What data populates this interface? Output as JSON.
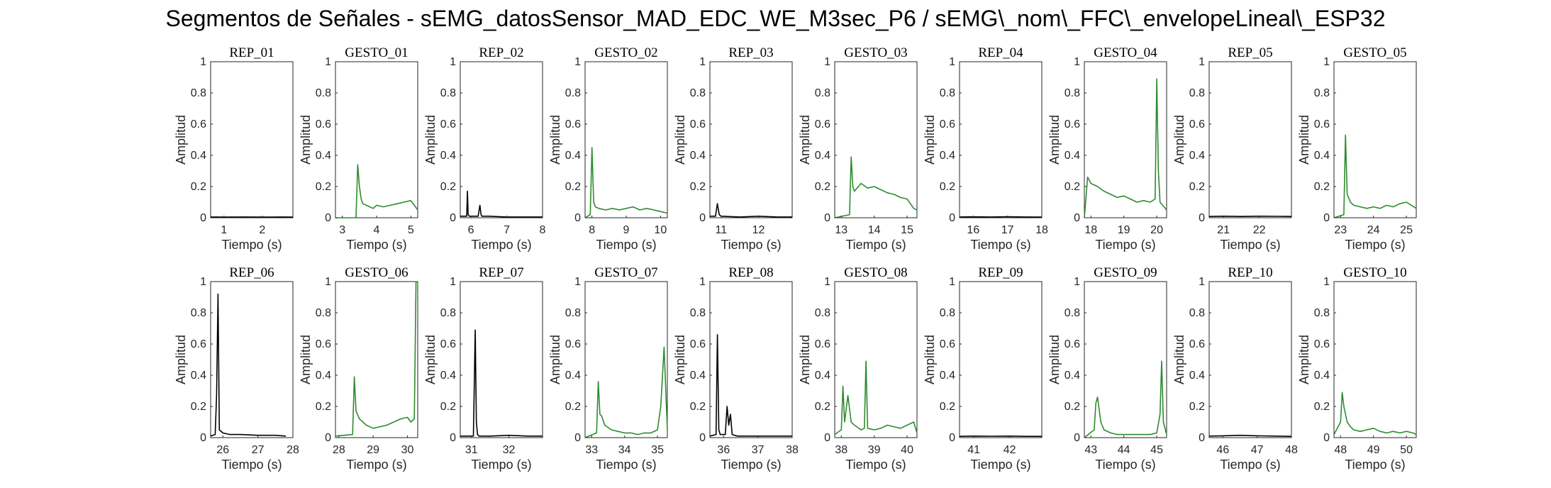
{
  "title": "Segmentos de Señales - sEMG_datosSensor_MAD_EDC_WE_M3sec_P6 / sEMG\\_nom\\_FFC\\_envelopeLineal\\_ESP32",
  "colors": {
    "rep": "#000000",
    "gesto": "#2e8b2e",
    "axis": "#262626"
  },
  "chart_data": [
    {
      "type": "line",
      "title": "REP_01",
      "xlabel": "Tiempo (s)",
      "ylabel": "Amplitud",
      "xlim": [
        0.65,
        2.8
      ],
      "ylim": [
        0,
        1
      ],
      "xticks": [
        1,
        2
      ],
      "yticks": [
        0,
        0.2,
        0.4,
        0.6,
        0.8,
        1
      ],
      "color": "rep",
      "x": [
        0.65,
        1.0,
        1.5,
        2.0,
        2.5,
        2.8
      ],
      "y": [
        0.005,
        0.004,
        0.005,
        0.004,
        0.005,
        0.004
      ]
    },
    {
      "type": "line",
      "title": "GESTO_01",
      "xlabel": "Tiempo (s)",
      "ylabel": "Amplitud",
      "xlim": [
        2.8,
        5.2
      ],
      "ylim": [
        0,
        1
      ],
      "xticks": [
        3,
        4,
        5
      ],
      "yticks": [
        0,
        0.2,
        0.4,
        0.6,
        0.8,
        1
      ],
      "color": "gesto",
      "x": [
        2.8,
        3.4,
        3.45,
        3.5,
        3.55,
        3.6,
        3.7,
        3.8,
        3.9,
        4.0,
        4.2,
        4.4,
        4.6,
        4.8,
        5.0,
        5.1,
        5.2
      ],
      "y": [
        0.0,
        0.0,
        0.34,
        0.2,
        0.12,
        0.09,
        0.08,
        0.07,
        0.06,
        0.08,
        0.07,
        0.08,
        0.09,
        0.1,
        0.11,
        0.08,
        0.05
      ]
    },
    {
      "type": "line",
      "title": "REP_02",
      "xlabel": "Tiempo (s)",
      "ylabel": "Amplitud",
      "xlim": [
        5.7,
        8.0
      ],
      "ylim": [
        0,
        1
      ],
      "xticks": [
        6,
        7,
        8
      ],
      "yticks": [
        0,
        0.2,
        0.4,
        0.6,
        0.8,
        1
      ],
      "color": "rep",
      "x": [
        5.7,
        5.88,
        5.9,
        5.92,
        5.95,
        6.2,
        6.25,
        6.28,
        6.3,
        6.5,
        7.0,
        7.5,
        8.0
      ],
      "y": [
        0.01,
        0.01,
        0.17,
        0.02,
        0.01,
        0.01,
        0.08,
        0.02,
        0.01,
        0.01,
        0.005,
        0.005,
        0.005
      ]
    },
    {
      "type": "line",
      "title": "GESTO_02",
      "xlabel": "Tiempo (s)",
      "ylabel": "Amplitud",
      "xlim": [
        7.8,
        10.2
      ],
      "ylim": [
        0,
        1
      ],
      "xticks": [
        8,
        9,
        10
      ],
      "yticks": [
        0,
        0.2,
        0.4,
        0.6,
        0.8,
        1
      ],
      "color": "gesto",
      "x": [
        7.8,
        7.95,
        8.0,
        8.05,
        8.1,
        8.2,
        8.4,
        8.6,
        8.8,
        9.0,
        9.2,
        9.4,
        9.6,
        9.8,
        10.0,
        10.2
      ],
      "y": [
        0.0,
        0.02,
        0.45,
        0.1,
        0.07,
        0.06,
        0.05,
        0.06,
        0.05,
        0.06,
        0.07,
        0.05,
        0.06,
        0.05,
        0.04,
        0.03
      ]
    },
    {
      "type": "line",
      "title": "REP_03",
      "xlabel": "Tiempo (s)",
      "ylabel": "Amplitud",
      "xlim": [
        10.7,
        12.9
      ],
      "ylim": [
        0,
        1
      ],
      "xticks": [
        11,
        12
      ],
      "yticks": [
        0,
        0.2,
        0.4,
        0.6,
        0.8,
        1
      ],
      "color": "rep",
      "x": [
        10.7,
        10.85,
        10.9,
        10.95,
        11.0,
        11.5,
        12.0,
        12.5,
        12.9
      ],
      "y": [
        0.01,
        0.01,
        0.09,
        0.02,
        0.01,
        0.005,
        0.01,
        0.005,
        0.005
      ]
    },
    {
      "type": "line",
      "title": "GESTO_03",
      "xlabel": "Tiempo (s)",
      "ylabel": "Amplitud",
      "xlim": [
        12.8,
        15.3
      ],
      "ylim": [
        0,
        1
      ],
      "xticks": [
        13,
        14,
        15
      ],
      "yticks": [
        0,
        0.2,
        0.4,
        0.6,
        0.8,
        1
      ],
      "color": "gesto",
      "x": [
        12.8,
        13.25,
        13.3,
        13.35,
        13.4,
        13.6,
        13.8,
        14.0,
        14.2,
        14.4,
        14.6,
        14.8,
        15.0,
        15.2,
        15.3
      ],
      "y": [
        0.0,
        0.02,
        0.39,
        0.2,
        0.17,
        0.22,
        0.19,
        0.2,
        0.18,
        0.16,
        0.15,
        0.13,
        0.12,
        0.06,
        0.05
      ]
    },
    {
      "type": "line",
      "title": "REP_04",
      "xlabel": "Tiempo (s)",
      "ylabel": "Amplitud",
      "xlim": [
        15.6,
        18.0
      ],
      "ylim": [
        0,
        1
      ],
      "xticks": [
        16,
        17,
        18
      ],
      "yticks": [
        0,
        0.2,
        0.4,
        0.6,
        0.8,
        1
      ],
      "color": "rep",
      "x": [
        15.6,
        16.0,
        16.5,
        17.0,
        17.5,
        18.0
      ],
      "y": [
        0.005,
        0.006,
        0.005,
        0.007,
        0.005,
        0.004
      ]
    },
    {
      "type": "line",
      "title": "GESTO_04",
      "xlabel": "Tiempo (s)",
      "ylabel": "Amplitud",
      "xlim": [
        17.8,
        20.3
      ],
      "ylim": [
        0,
        1
      ],
      "xticks": [
        18,
        19,
        20
      ],
      "yticks": [
        0,
        0.2,
        0.4,
        0.6,
        0.8,
        1
      ],
      "color": "gesto",
      "x": [
        17.8,
        17.9,
        18.0,
        18.2,
        18.4,
        18.6,
        18.8,
        19.0,
        19.2,
        19.4,
        19.6,
        19.8,
        19.95,
        20.0,
        20.05,
        20.1,
        20.3
      ],
      "y": [
        0.0,
        0.26,
        0.22,
        0.2,
        0.17,
        0.15,
        0.13,
        0.14,
        0.12,
        0.1,
        0.11,
        0.1,
        0.12,
        0.89,
        0.3,
        0.1,
        0.05
      ]
    },
    {
      "type": "line",
      "title": "REP_05",
      "xlabel": "Tiempo (s)",
      "ylabel": "Amplitud",
      "xlim": [
        20.6,
        22.9
      ],
      "ylim": [
        0,
        1
      ],
      "xticks": [
        21,
        22
      ],
      "yticks": [
        0,
        0.2,
        0.4,
        0.6,
        0.8,
        1
      ],
      "color": "rep",
      "x": [
        20.6,
        21.0,
        21.5,
        22.0,
        22.5,
        22.9
      ],
      "y": [
        0.008,
        0.01,
        0.008,
        0.01,
        0.009,
        0.008
      ]
    },
    {
      "type": "line",
      "title": "GESTO_05",
      "xlabel": "Tiempo (s)",
      "ylabel": "Amplitud",
      "xlim": [
        22.8,
        25.3
      ],
      "ylim": [
        0,
        1
      ],
      "xticks": [
        23,
        24,
        25
      ],
      "yticks": [
        0,
        0.2,
        0.4,
        0.6,
        0.8,
        1
      ],
      "color": "gesto",
      "x": [
        22.8,
        23.1,
        23.15,
        23.2,
        23.3,
        23.4,
        23.6,
        23.8,
        24.0,
        24.2,
        24.4,
        24.6,
        24.8,
        25.0,
        25.3
      ],
      "y": [
        0.0,
        0.02,
        0.53,
        0.15,
        0.1,
        0.08,
        0.07,
        0.06,
        0.07,
        0.06,
        0.08,
        0.07,
        0.09,
        0.1,
        0.06
      ]
    },
    {
      "type": "line",
      "title": "REP_06",
      "xlabel": "Tiempo (s)",
      "ylabel": "Amplitud",
      "xlim": [
        25.65,
        28.0
      ],
      "ylim": [
        0,
        1
      ],
      "xticks": [
        26,
        27,
        28
      ],
      "yticks": [
        0,
        0.2,
        0.4,
        0.6,
        0.8,
        1
      ],
      "color": "rep",
      "x": [
        25.65,
        25.78,
        25.82,
        25.86,
        25.9,
        26.0,
        26.2,
        26.5,
        27.0,
        27.5,
        27.8
      ],
      "y": [
        0.01,
        0.02,
        0.27,
        0.92,
        0.05,
        0.03,
        0.02,
        0.02,
        0.015,
        0.015,
        0.01
      ]
    },
    {
      "type": "line",
      "title": "GESTO_06",
      "xlabel": "Tiempo (s)",
      "ylabel": "Amplitud",
      "xlim": [
        27.9,
        30.3
      ],
      "ylim": [
        0,
        1
      ],
      "xticks": [
        28,
        29,
        30
      ],
      "yticks": [
        0,
        0.2,
        0.4,
        0.6,
        0.8,
        1
      ],
      "color": "gesto",
      "x": [
        27.9,
        28.4,
        28.45,
        28.5,
        28.6,
        28.8,
        29.0,
        29.2,
        29.4,
        29.6,
        29.8,
        30.0,
        30.1,
        30.2,
        30.25,
        30.3
      ],
      "y": [
        0.01,
        0.02,
        0.39,
        0.17,
        0.12,
        0.08,
        0.06,
        0.07,
        0.08,
        0.1,
        0.12,
        0.13,
        0.1,
        0.12,
        1.0,
        1.0
      ]
    },
    {
      "type": "line",
      "title": "REP_07",
      "xlabel": "Tiempo (s)",
      "ylabel": "Amplitud",
      "xlim": [
        30.7,
        32.9
      ],
      "ylim": [
        0,
        1
      ],
      "xticks": [
        31,
        32
      ],
      "yticks": [
        0,
        0.2,
        0.4,
        0.6,
        0.8,
        1
      ],
      "color": "rep",
      "x": [
        30.7,
        31.05,
        31.1,
        31.13,
        31.16,
        31.2,
        31.5,
        32.0,
        32.5,
        32.9
      ],
      "y": [
        0.01,
        0.01,
        0.69,
        0.1,
        0.02,
        0.01,
        0.01,
        0.015,
        0.01,
        0.01
      ]
    },
    {
      "type": "line",
      "title": "GESTO_07",
      "xlabel": "Tiempo (s)",
      "ylabel": "Amplitud",
      "xlim": [
        32.8,
        35.3
      ],
      "ylim": [
        0,
        1
      ],
      "xticks": [
        33,
        34,
        35
      ],
      "yticks": [
        0,
        0.2,
        0.4,
        0.6,
        0.8,
        1
      ],
      "color": "gesto",
      "x": [
        32.8,
        33.15,
        33.2,
        33.25,
        33.3,
        33.4,
        33.6,
        33.8,
        34.0,
        34.2,
        34.4,
        34.6,
        34.8,
        35.0,
        35.1,
        35.2,
        35.3
      ],
      "y": [
        0.0,
        0.03,
        0.36,
        0.15,
        0.14,
        0.08,
        0.05,
        0.04,
        0.03,
        0.03,
        0.02,
        0.03,
        0.03,
        0.05,
        0.2,
        0.58,
        0.05
      ]
    },
    {
      "type": "line",
      "title": "REP_08",
      "xlabel": "Tiempo (s)",
      "ylabel": "Amplitud",
      "xlim": [
        35.6,
        38.0
      ],
      "ylim": [
        0,
        1
      ],
      "xticks": [
        36,
        37,
        38
      ],
      "yticks": [
        0,
        0.2,
        0.4,
        0.6,
        0.8,
        1
      ],
      "color": "rep",
      "x": [
        35.6,
        35.78,
        35.82,
        35.86,
        35.9,
        36.05,
        36.1,
        36.15,
        36.2,
        36.25,
        36.4,
        37.0,
        37.5,
        38.0
      ],
      "y": [
        0.01,
        0.02,
        0.66,
        0.05,
        0.02,
        0.02,
        0.2,
        0.08,
        0.15,
        0.02,
        0.01,
        0.01,
        0.01,
        0.01
      ]
    },
    {
      "type": "line",
      "title": "GESTO_08",
      "xlabel": "Tiempo (s)",
      "ylabel": "Amplitud",
      "xlim": [
        37.8,
        40.3
      ],
      "ylim": [
        0,
        1
      ],
      "xticks": [
        38,
        39,
        40
      ],
      "yticks": [
        0,
        0.2,
        0.4,
        0.6,
        0.8,
        1
      ],
      "color": "gesto",
      "x": [
        37.8,
        38.0,
        38.05,
        38.1,
        38.2,
        38.3,
        38.4,
        38.6,
        38.7,
        38.75,
        38.8,
        39.0,
        39.2,
        39.4,
        39.6,
        39.8,
        40.0,
        40.2,
        40.3
      ],
      "y": [
        0.02,
        0.05,
        0.33,
        0.1,
        0.27,
        0.1,
        0.08,
        0.05,
        0.06,
        0.49,
        0.06,
        0.05,
        0.06,
        0.08,
        0.07,
        0.06,
        0.08,
        0.1,
        0.03
      ]
    },
    {
      "type": "line",
      "title": "REP_09",
      "xlabel": "Tiempo (s)",
      "ylabel": "Amplitud",
      "xlim": [
        40.6,
        42.9
      ],
      "ylim": [
        0,
        1
      ],
      "xticks": [
        41,
        42
      ],
      "yticks": [
        0,
        0.2,
        0.4,
        0.6,
        0.8,
        1
      ],
      "color": "rep",
      "x": [
        40.6,
        41.0,
        41.5,
        42.0,
        42.5,
        42.9
      ],
      "y": [
        0.008,
        0.01,
        0.009,
        0.01,
        0.008,
        0.008
      ]
    },
    {
      "type": "line",
      "title": "GESTO_09",
      "xlabel": "Tiempo (s)",
      "ylabel": "Amplitud",
      "xlim": [
        42.8,
        45.3
      ],
      "ylim": [
        0,
        1
      ],
      "xticks": [
        43,
        44,
        45
      ],
      "yticks": [
        0,
        0.2,
        0.4,
        0.6,
        0.8,
        1
      ],
      "color": "gesto",
      "x": [
        42.8,
        43.1,
        43.15,
        43.2,
        43.3,
        43.4,
        43.6,
        43.8,
        44.0,
        44.2,
        44.4,
        44.6,
        44.8,
        45.0,
        45.1,
        45.15,
        45.2,
        45.3
      ],
      "y": [
        0.0,
        0.05,
        0.22,
        0.26,
        0.1,
        0.05,
        0.03,
        0.02,
        0.02,
        0.02,
        0.02,
        0.02,
        0.02,
        0.03,
        0.15,
        0.49,
        0.1,
        0.02
      ]
    },
    {
      "type": "line",
      "title": "REP_10",
      "xlabel": "Tiempo (s)",
      "ylabel": "Amplitud",
      "xlim": [
        45.6,
        48.0
      ],
      "ylim": [
        0,
        1
      ],
      "xticks": [
        46,
        47,
        48
      ],
      "yticks": [
        0,
        0.2,
        0.4,
        0.6,
        0.8,
        1
      ],
      "color": "rep",
      "x": [
        45.6,
        46.0,
        46.5,
        47.0,
        47.5,
        48.0
      ],
      "y": [
        0.01,
        0.012,
        0.015,
        0.012,
        0.01,
        0.008
      ]
    },
    {
      "type": "line",
      "title": "GESTO_10",
      "xlabel": "Tiempo (s)",
      "ylabel": "Amplitud",
      "xlim": [
        47.8,
        50.3
      ],
      "ylim": [
        0,
        1
      ],
      "xticks": [
        48,
        49,
        50
      ],
      "yticks": [
        0,
        0.2,
        0.4,
        0.6,
        0.8,
        1
      ],
      "color": "gesto",
      "x": [
        47.8,
        48.0,
        48.05,
        48.1,
        48.2,
        48.3,
        48.4,
        48.6,
        48.8,
        49.0,
        49.2,
        49.4,
        49.6,
        49.8,
        50.0,
        50.2,
        50.3
      ],
      "y": [
        0.02,
        0.1,
        0.29,
        0.2,
        0.1,
        0.07,
        0.05,
        0.04,
        0.05,
        0.06,
        0.04,
        0.03,
        0.04,
        0.03,
        0.04,
        0.03,
        0.02
      ]
    }
  ]
}
